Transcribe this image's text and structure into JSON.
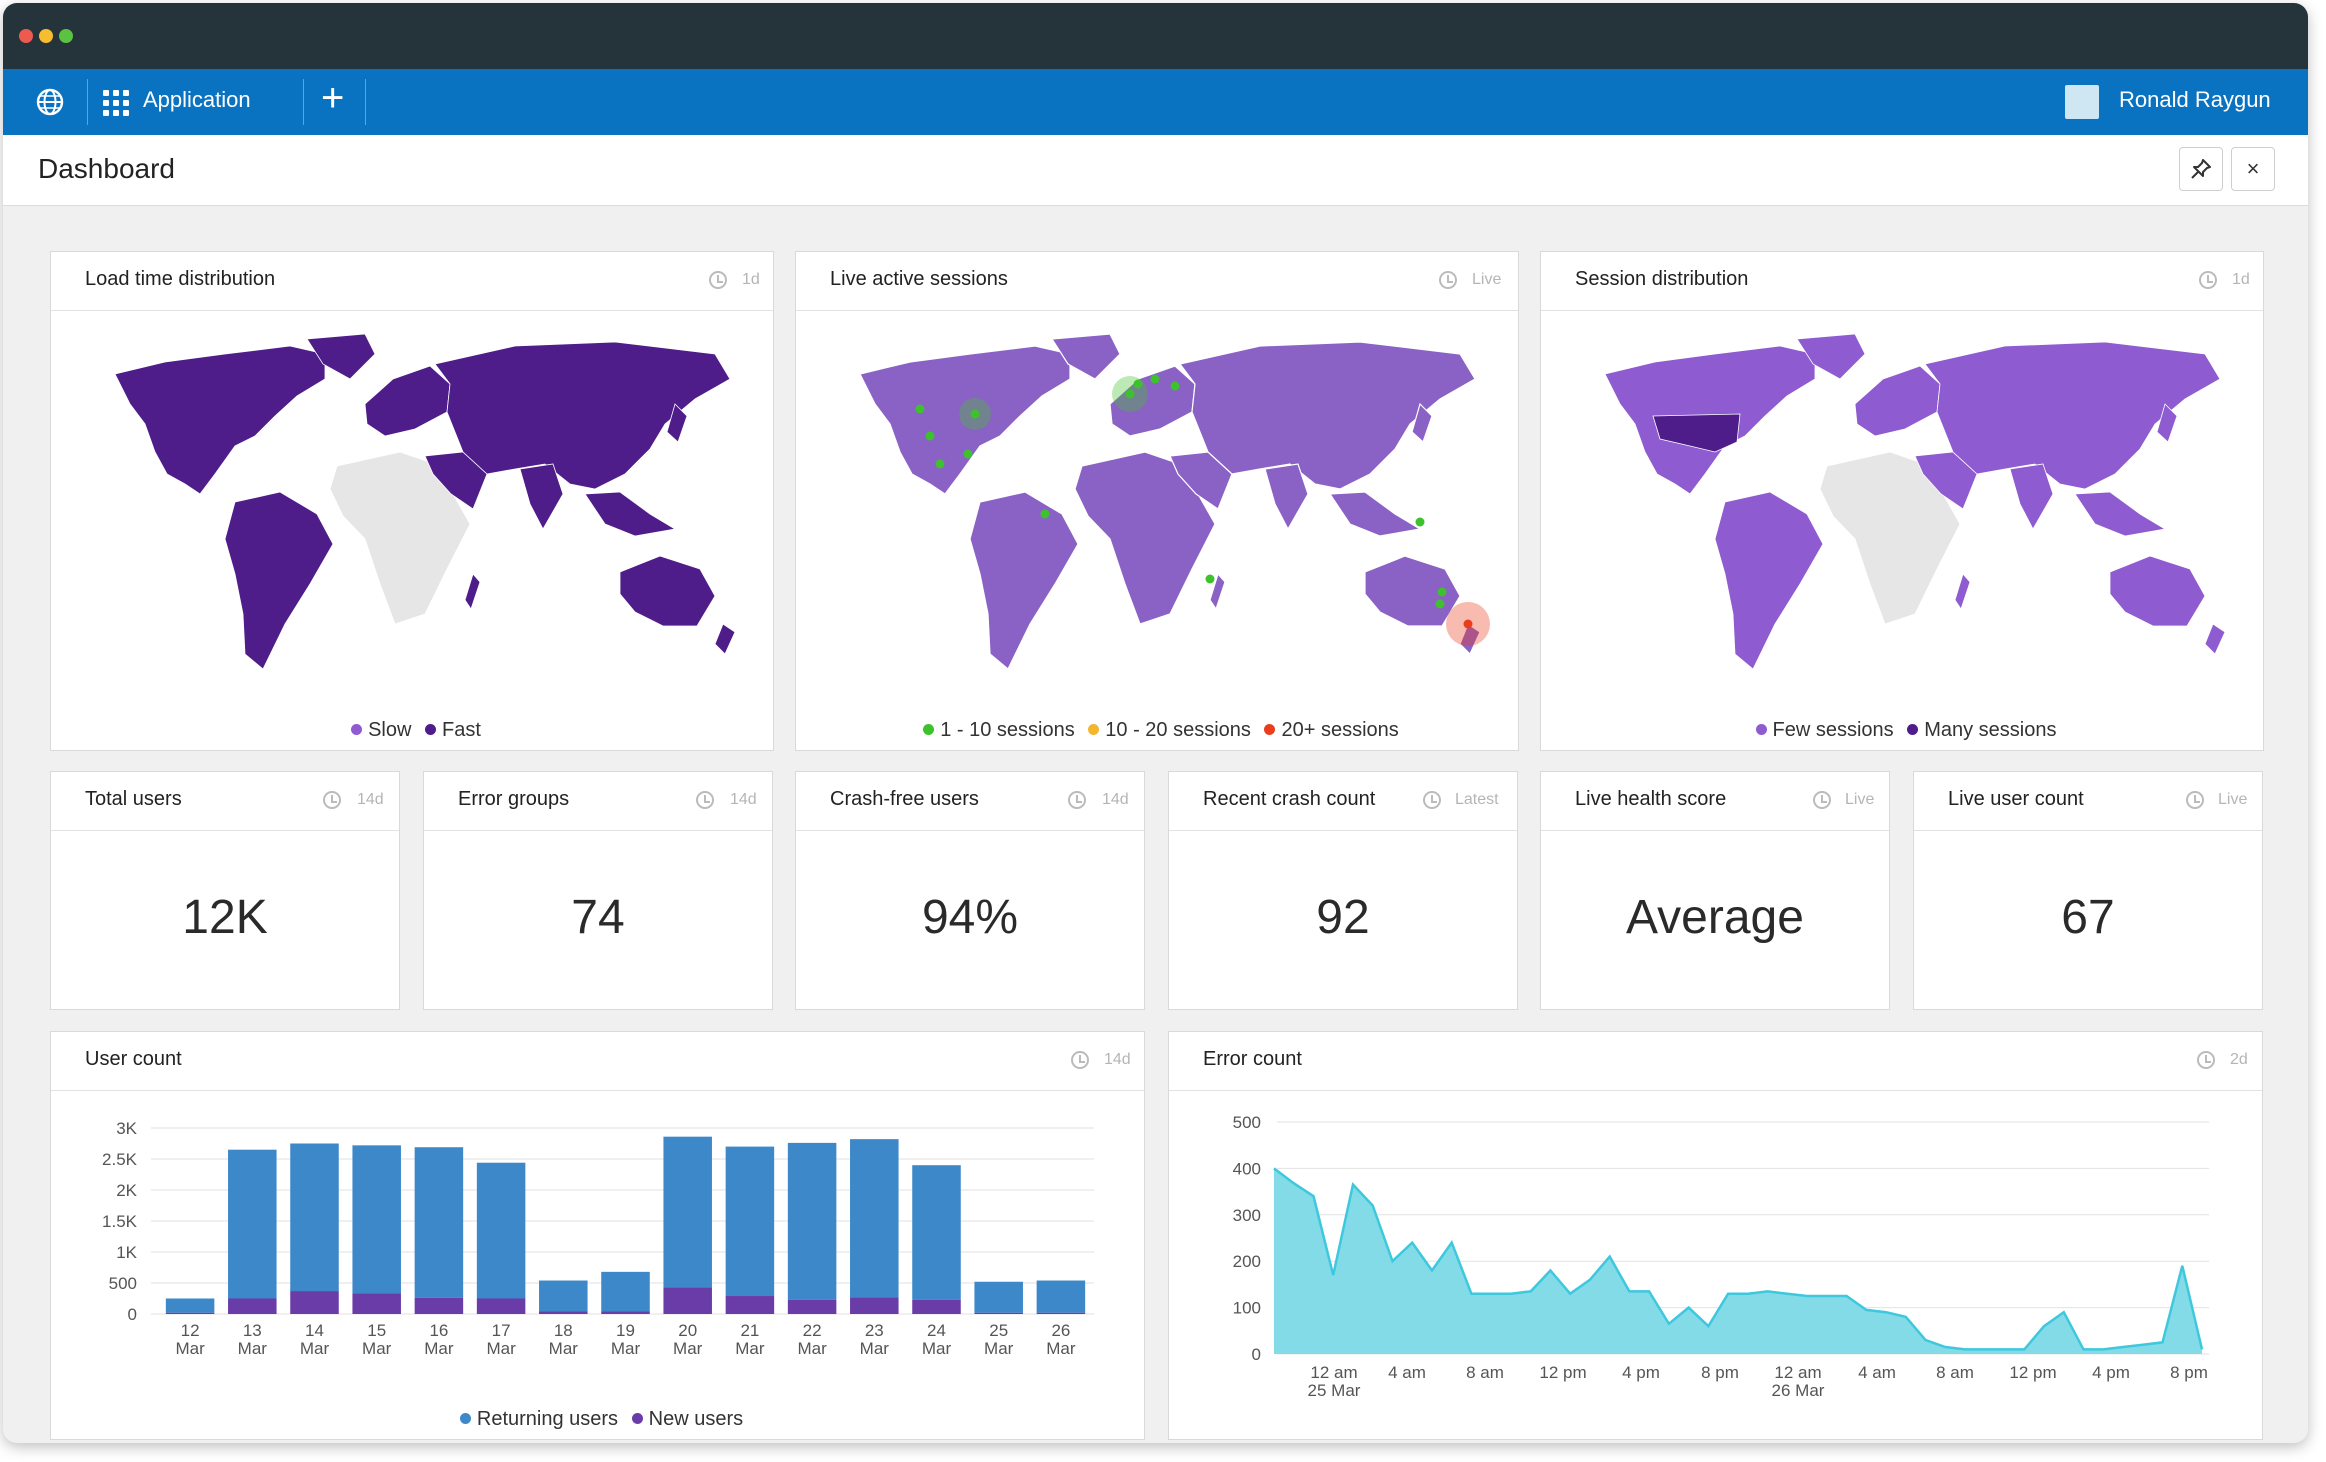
{
  "window": {
    "dots": [
      "#ed5a4f",
      "#f5bd2f",
      "#5bc343"
    ]
  },
  "navbar": {
    "app_label": "Application",
    "add_label": "+",
    "user_name": "Ronald Raygun"
  },
  "header": {
    "title": "Dashboard",
    "pin_label": "📌",
    "close_label": "×"
  },
  "cards": {
    "load_time": {
      "title": "Load time distribution",
      "range": "1d",
      "legend": [
        "Slow",
        "Fast"
      ],
      "colors": [
        "#8e5bd0",
        "#4e1d8a"
      ]
    },
    "live_sessions": {
      "title": "Live active sessions",
      "range": "Live",
      "legend": [
        "1 - 10 sessions",
        "10 - 20 sessions",
        "20+ sessions"
      ],
      "colors": [
        "#3ec22c",
        "#f4b62b",
        "#ea3d1c"
      ]
    },
    "session_dist": {
      "title": "Session distribution",
      "range": "1d",
      "legend": [
        "Few sessions",
        "Many sessions"
      ],
      "colors": [
        "#8e5bd0",
        "#4e1d8a"
      ]
    },
    "total_users": {
      "title": "Total users",
      "range": "14d",
      "value": "12K"
    },
    "error_groups": {
      "title": "Error groups",
      "range": "14d",
      "value": "74"
    },
    "crash_free": {
      "title": "Crash-free users",
      "range": "14d",
      "value": "94%"
    },
    "recent_crash": {
      "title": "Recent crash count",
      "range": "Latest",
      "value": "92"
    },
    "health_score": {
      "title": "Live health score",
      "range": "Live",
      "value": "Average"
    },
    "live_users": {
      "title": "Live user count",
      "range": "Live",
      "value": "67"
    },
    "user_count": {
      "title": "User count",
      "range": "14d"
    },
    "error_count": {
      "title": "Error count",
      "range": "2d"
    }
  },
  "chart_data": [
    {
      "type": "bar",
      "stacked": true,
      "categories": [
        "12 Mar",
        "13 Mar",
        "14 Mar",
        "15 Mar",
        "16 Mar",
        "17 Mar",
        "18 Mar",
        "19 Mar",
        "20 Mar",
        "21 Mar",
        "22 Mar",
        "23 Mar",
        "24 Mar",
        "25 Mar",
        "26 Mar"
      ],
      "series": [
        {
          "name": "Returning users",
          "color": "#3c88c9",
          "values": [
            230,
            2400,
            2380,
            2390,
            2430,
            2190,
            500,
            640,
            2430,
            2410,
            2530,
            2550,
            2170,
            500,
            520
          ]
        },
        {
          "name": "New users",
          "color": "#6a3ca8",
          "values": [
            20,
            250,
            370,
            330,
            260,
            250,
            40,
            40,
            430,
            290,
            230,
            270,
            230,
            20,
            20
          ]
        }
      ],
      "yticks": [
        "0",
        "500",
        "1K",
        "1.5K",
        "2K",
        "2.5K",
        "3K"
      ],
      "ylim": [
        0,
        3000
      ],
      "grid": true,
      "legend": "bottom"
    },
    {
      "type": "area",
      "series": [
        {
          "color": "#3ec8de",
          "values": [
            400,
            368,
            340,
            170,
            365,
            320,
            200,
            240,
            180,
            240,
            130,
            130,
            130,
            135,
            180,
            130,
            160,
            210,
            135,
            135,
            65,
            100,
            60,
            130,
            130,
            135,
            130,
            125,
            125,
            125,
            95,
            90,
            80,
            30,
            15,
            10,
            10,
            10,
            10,
            60,
            90,
            10,
            10,
            15,
            20,
            25,
            190,
            10
          ]
        }
      ],
      "xticks": [
        "12 am\n25 Mar",
        "4 am",
        "8 am",
        "12 pm",
        "4 pm",
        "8 pm",
        "12 am\n26 Mar",
        "4 am",
        "8 am",
        "12 pm",
        "4 pm",
        "8 pm"
      ],
      "yticks": [
        "0",
        "100",
        "200",
        "300",
        "400",
        "500"
      ],
      "ylim": [
        0,
        500
      ],
      "grid": true
    }
  ],
  "map_data": {
    "live_sessions_markers": [
      {
        "region": "US West",
        "color": "#3ec22c"
      },
      {
        "region": "US East",
        "color": "#3ec22c"
      },
      {
        "region": "Europe",
        "color": "#3ec22c"
      },
      {
        "region": "South America",
        "color": "#3ec22c"
      },
      {
        "region": "Australia East",
        "color": "#ea3d1c"
      }
    ]
  }
}
